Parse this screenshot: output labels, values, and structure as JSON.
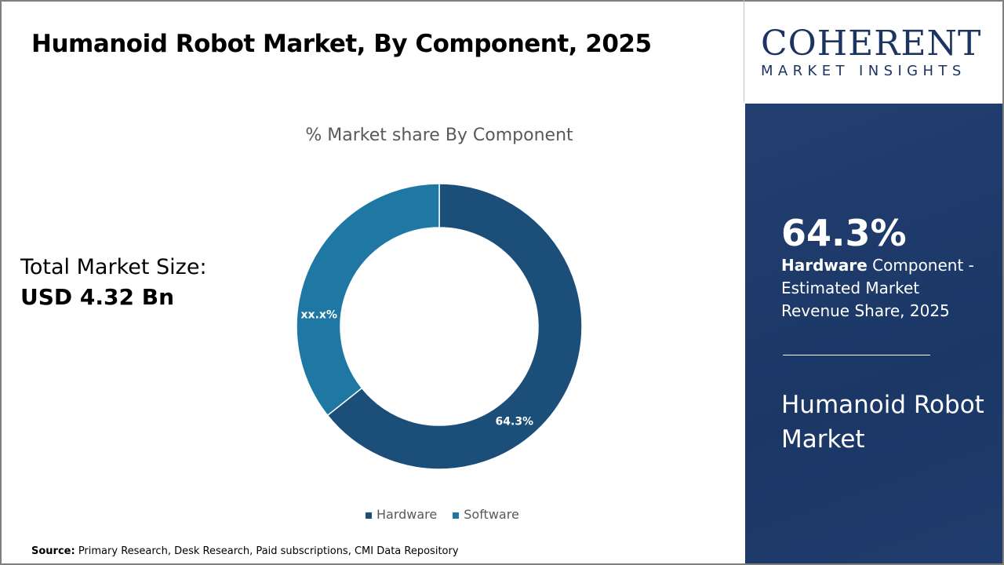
{
  "title": "Humanoid Robot Market, By Component, 2025",
  "total_market": {
    "label": "Total Market Size:",
    "value": "USD 4.32 Bn"
  },
  "source": {
    "label": "Source:",
    "text": " Primary Research, Desk Research, Paid subscriptions, CMI Data Repository"
  },
  "logo": {
    "line1": "COHERENT",
    "line2": "MARKET INSIGHTS"
  },
  "panel": {
    "big": "64.3%",
    "bold": "Hardware",
    "desc": " Component - Estimated Market Revenue Share, 2025",
    "name": "Humanoid Robot Market"
  },
  "chart_data": {
    "type": "pie",
    "donut": true,
    "title": "% Market share By Component",
    "categories": [
      "Hardware",
      "Software"
    ],
    "values": [
      64.3,
      35.7
    ],
    "data_labels": [
      "64.3%",
      "xx.x%"
    ],
    "colors": [
      "#1b4f7a",
      "#1f77a3"
    ],
    "legend": "bottom"
  }
}
